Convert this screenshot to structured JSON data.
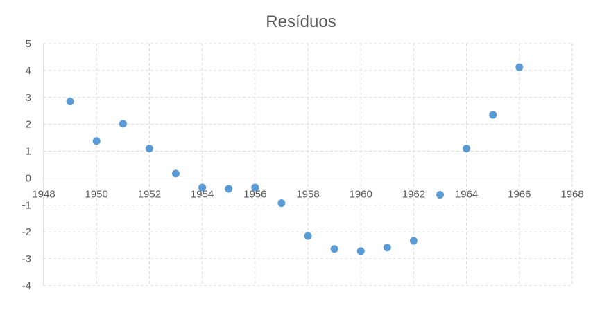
{
  "chart_data": {
    "type": "scatter",
    "title": "Resíduos",
    "xlabel": "",
    "ylabel": "",
    "xlim": [
      1948,
      1968
    ],
    "ylim": [
      -4,
      5
    ],
    "xticks": [
      1948,
      1950,
      1952,
      1954,
      1956,
      1958,
      1960,
      1962,
      1964,
      1966,
      1968
    ],
    "yticks": [
      -4,
      -3,
      -2,
      -1,
      0,
      1,
      2,
      3,
      4,
      5
    ],
    "grid": true,
    "legend": "none",
    "series": [
      {
        "color": "#5b9bd5",
        "x": [
          1949,
          1950,
          1951,
          1952,
          1953,
          1954,
          1955,
          1956,
          1957,
          1958,
          1959,
          1960,
          1961,
          1962,
          1963,
          1964,
          1965,
          1966
        ],
        "y": [
          2.85,
          1.38,
          2.02,
          1.1,
          0.17,
          -0.35,
          -0.4,
          -0.35,
          -0.93,
          -2.15,
          -2.63,
          -2.71,
          -2.58,
          -2.33,
          -0.62,
          1.1,
          2.35,
          4.12
        ]
      }
    ],
    "colors": {
      "grid": "#d9d9d9",
      "axis": "#bfbfbf",
      "text": "#595959"
    }
  }
}
